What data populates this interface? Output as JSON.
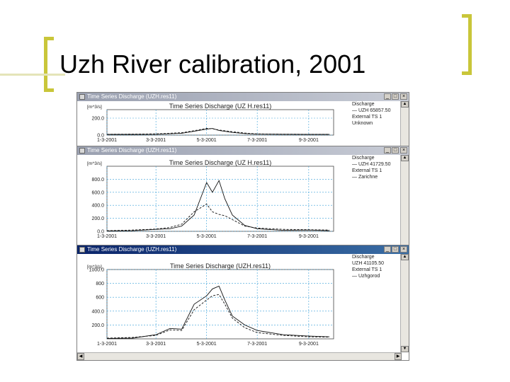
{
  "slide": {
    "title": "Uzh River calibration, 2001"
  },
  "windows": [
    {
      "title": "Time Series Discharge (UZH.res11)",
      "active": false,
      "legend": [
        "Discharge",
        "— UZH  65857.50",
        "External TS 1",
        "Unknown"
      ]
    },
    {
      "title": "Time Series Discharge (UZH.res11)",
      "active": false,
      "legend": [
        "Discharge",
        "— UZH  41729.50",
        "External TS 1",
        "— Zarichne"
      ]
    },
    {
      "title": "Time Series Discharge (UZH.res11)",
      "active": true,
      "legend": [
        "Discharge",
        "UZH  41105.50",
        "External TS 1",
        "— Uzhgorod"
      ]
    }
  ],
  "chart_data": [
    {
      "type": "line",
      "title": "Time Series Discharge (UZ H.res11)",
      "ylabel": "[m^3/s]",
      "ylim": [
        0,
        300
      ],
      "yticks": [
        "200.0",
        "0.0"
      ],
      "xticks": [
        "1-3-2001",
        "3-3-2001",
        "5-3-2001",
        "7-3-2001",
        "9-3-2001"
      ],
      "x": [
        "1-3-2001",
        "2-3-2001",
        "3-3-2001",
        "4-3-2001",
        "4-18-2001",
        "5-3-2001",
        "5-10-2001",
        "5-18-2001",
        "6-3-2001",
        "6-18-2001",
        "7-3-2001",
        "8-3-2001",
        "9-3-2001",
        "9-28-2001"
      ],
      "series": [
        {
          "values": [
            8,
            8,
            10,
            22,
            45,
            70,
            78,
            55,
            32,
            18,
            12,
            10,
            9,
            9
          ],
          "style": "solid"
        },
        {
          "values": [
            10,
            12,
            14,
            28,
            52,
            80,
            75,
            60,
            40,
            24,
            14,
            11,
            10,
            10
          ],
          "style": "dashed"
        }
      ],
      "grid": true
    },
    {
      "type": "line",
      "title": "Time Series Discharge (UZ H.res11)",
      "ylabel": "[m^3/s]",
      "ylim": [
        0,
        1000
      ],
      "yticks": [
        "800.0",
        "600.0",
        "400.0",
        "200.0",
        "0.0"
      ],
      "xticks": [
        "1-3-2001",
        "3-3-2001",
        "5-3-2001",
        "7-3-2001",
        "9-3-2001"
      ],
      "x": [
        "1-3-2001",
        "2-3-2001",
        "3-3-2001",
        "3-20-2001",
        "4-3-2001",
        "4-18-2001",
        "5-3-2001",
        "5-10-2001",
        "5-18-2001",
        "5-25-2001",
        "6-3-2001",
        "6-18-2001",
        "7-3-2001",
        "8-3-2001",
        "9-3-2001",
        "9-28-2001"
      ],
      "series": [
        {
          "values": [
            5,
            10,
            30,
            40,
            80,
            250,
            750,
            600,
            780,
            500,
            250,
            90,
            40,
            15,
            20,
            10
          ],
          "style": "solid"
        },
        {
          "values": [
            10,
            20,
            35,
            60,
            110,
            300,
            420,
            300,
            260,
            240,
            180,
            80,
            50,
            30,
            25,
            20
          ],
          "style": "dashed"
        }
      ],
      "grid": true
    },
    {
      "type": "line",
      "title": "Time Series Discharge (UZH.res11)",
      "ylabel": "[m^3/s]",
      "ylim": [
        0,
        1000
      ],
      "yticks": [
        "1000.0",
        "800",
        "600",
        "400.0",
        "200.0"
      ],
      "xticks": [
        "1-3-2001",
        "3-3-2001",
        "5-3-2001",
        "7-3-2001",
        "9-3-2001"
      ],
      "x": [
        "1-3-2001",
        "2-3-2001",
        "3-3-2001",
        "3-20-2001",
        "4-3-2001",
        "4-18-2001",
        "5-3-2001",
        "5-10-2001",
        "5-18-2001",
        "5-25-2001",
        "6-3-2001",
        "6-18-2001",
        "7-3-2001",
        "8-3-2001",
        "9-3-2001",
        "9-28-2001"
      ],
      "series": [
        {
          "values": [
            5,
            10,
            60,
            150,
            140,
            500,
            620,
            720,
            760,
            560,
            330,
            200,
            120,
            60,
            40,
            30
          ],
          "style": "solid"
        },
        {
          "values": [
            10,
            20,
            50,
            130,
            120,
            420,
            560,
            620,
            640,
            500,
            300,
            160,
            90,
            50,
            30,
            25
          ],
          "style": "dashed"
        }
      ],
      "grid": true
    }
  ]
}
